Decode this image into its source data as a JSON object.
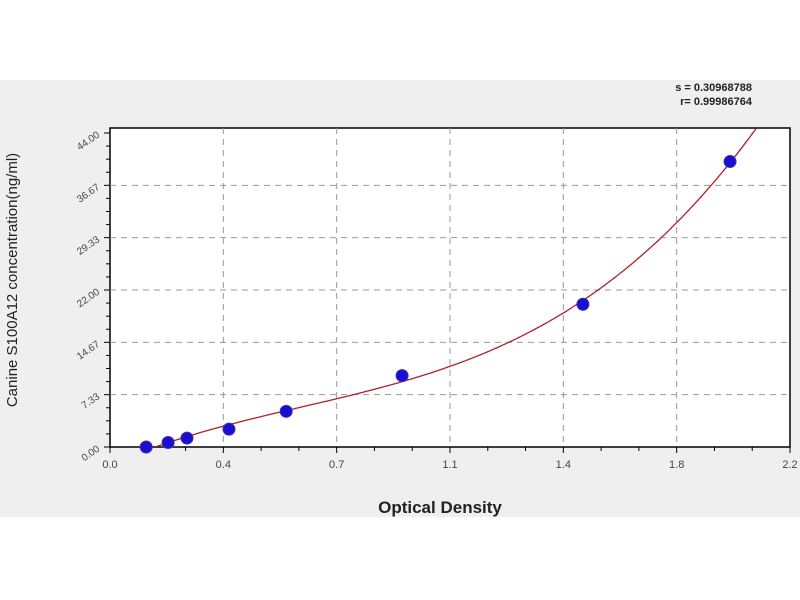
{
  "chart_data": {
    "type": "scatter",
    "title": "",
    "xlabel": "Optical Density",
    "ylabel": "Canine S100A12 concentration(ng/ml)",
    "xlim": [
      0,
      2.2
    ],
    "ylim": [
      0,
      44
    ],
    "xticks": [
      "0.0",
      "0.4",
      "0.7",
      "1.1",
      "1.4",
      "1.8",
      "2.2"
    ],
    "yticks": [
      "0.00",
      "7.33",
      "14.67",
      "22.00",
      "29.33",
      "36.67",
      "44.00"
    ],
    "grid": true,
    "stats": {
      "s": "s = 0.30968788",
      "r": "r= 0.99986764"
    },
    "series": [
      {
        "x": [
          0.117,
          0.188,
          0.249,
          0.385,
          0.57,
          0.945,
          1.53,
          2.006
        ],
        "y": [
          0.0,
          0.63,
          1.25,
          2.5,
          5.0,
          10.0,
          20.0,
          40.0
        ],
        "marker_color": "#1a0fd0",
        "line_color": "#b0202a",
        "fit": "curve"
      }
    ]
  }
}
